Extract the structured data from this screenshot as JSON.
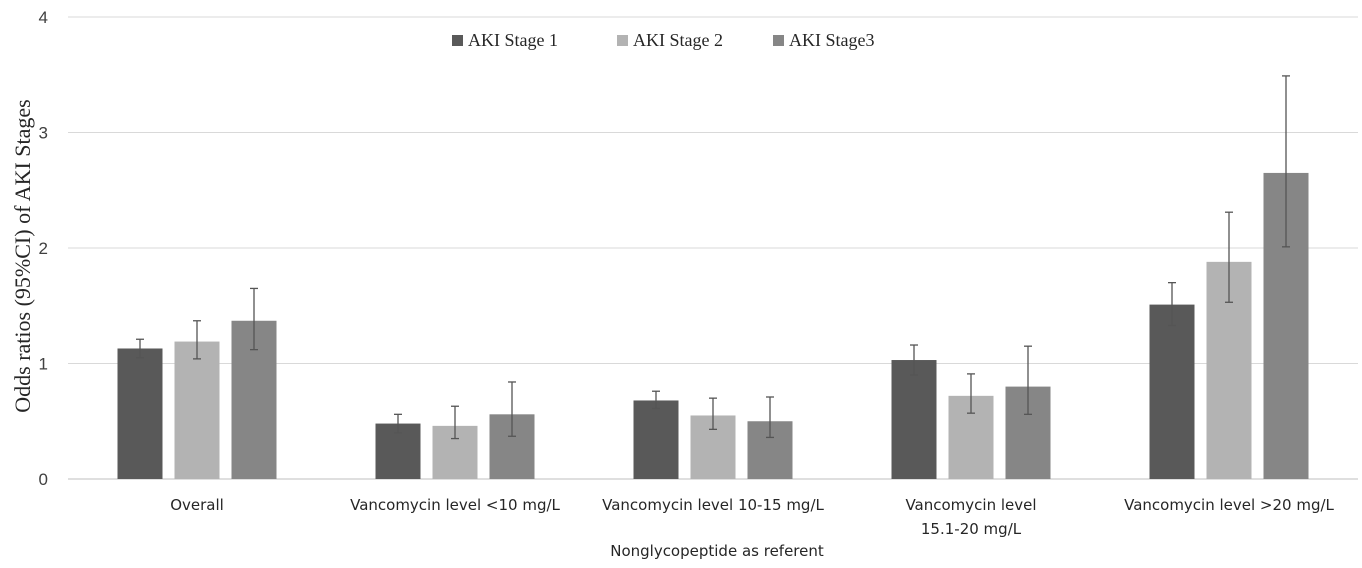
{
  "chart_data": {
    "type": "bar",
    "title": "",
    "xlabel": "Nonglycopeptide as referent",
    "ylabel": "Odds ratios (95%CI) of AKI  Stages",
    "ylim": [
      0,
      4
    ],
    "yticks": [
      "0",
      "1",
      "2",
      "3",
      "4"
    ],
    "grid": "horizontal",
    "legend_position": "top-center",
    "categories": [
      [
        "Overall"
      ],
      [
        "Vancomycin level <10 mg/L"
      ],
      [
        "Vancomycin level 10-15 mg/L"
      ],
      [
        "Vancomycin level",
        "15.1-20 mg/L"
      ],
      [
        "Vancomycin level >20 mg/L"
      ]
    ],
    "series": [
      {
        "name": "AKI Stage 1",
        "color": "#595959",
        "values": [
          1.13,
          0.48,
          0.68,
          1.03,
          1.51
        ],
        "ci_low": [
          1.05,
          0.4,
          0.61,
          0.9,
          1.33
        ],
        "ci_high": [
          1.21,
          0.56,
          0.76,
          1.16,
          1.7
        ]
      },
      {
        "name": "AKI Stage 2",
        "color": "#b3b3b3",
        "values": [
          1.19,
          0.46,
          0.55,
          0.72,
          1.88
        ],
        "ci_low": [
          1.04,
          0.35,
          0.43,
          0.57,
          1.53
        ],
        "ci_high": [
          1.37,
          0.63,
          0.7,
          0.91,
          2.31
        ]
      },
      {
        "name": "AKI Stage3",
        "color": "#868686",
        "values": [
          1.37,
          0.56,
          0.5,
          0.8,
          2.65
        ],
        "ci_low": [
          1.12,
          0.37,
          0.36,
          0.56,
          2.01
        ],
        "ci_high": [
          1.65,
          0.84,
          0.71,
          1.15,
          3.49
        ]
      }
    ]
  }
}
